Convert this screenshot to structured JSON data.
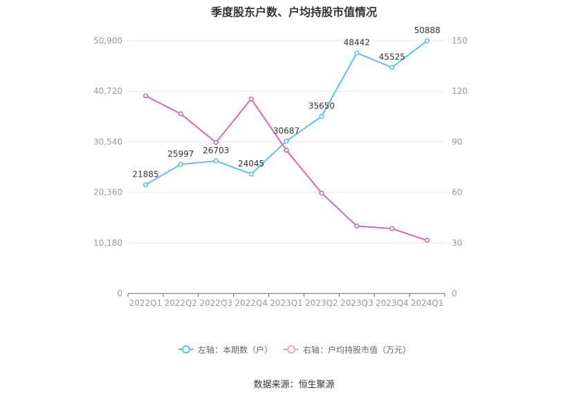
{
  "title": "季度股东户数、户均持股市值情况",
  "source": "数据来源：恒生聚源",
  "chart_data": {
    "type": "line",
    "categories": [
      "2022Q1",
      "2022Q2",
      "2022Q3",
      "2022Q4",
      "2023Q1",
      "2023Q2",
      "2023Q3",
      "2023Q4",
      "2024Q1"
    ],
    "series": [
      {
        "name": "左轴：本期数（户）",
        "axis": "left",
        "color": "#5bc0eb",
        "values": [
          21885,
          25997,
          26703,
          24045,
          30687,
          35650,
          48442,
          45525,
          50888
        ],
        "labels": [
          "21885",
          "25997",
          "26703",
          "24045",
          "30687",
          "35650",
          "48442",
          "45525",
          "50888"
        ]
      },
      {
        "name": "右轴：户均持股市值（万元）",
        "axis": "right",
        "color": "#d36ab0",
        "values": [
          117.3,
          106.6,
          89.6,
          115.5,
          85.0,
          59.6,
          40.0,
          38.5,
          31.5
        ]
      }
    ],
    "left_axis": {
      "ylim": [
        0,
        50900
      ],
      "ticks": [
        "0",
        "10,180",
        "20,360",
        "30,540",
        "40,720",
        "50,900"
      ]
    },
    "right_axis": {
      "ylim": [
        0,
        150
      ],
      "ticks": [
        "0",
        "30",
        "60",
        "90",
        "120",
        "150"
      ]
    },
    "grid": true,
    "legend_position": "bottom"
  }
}
